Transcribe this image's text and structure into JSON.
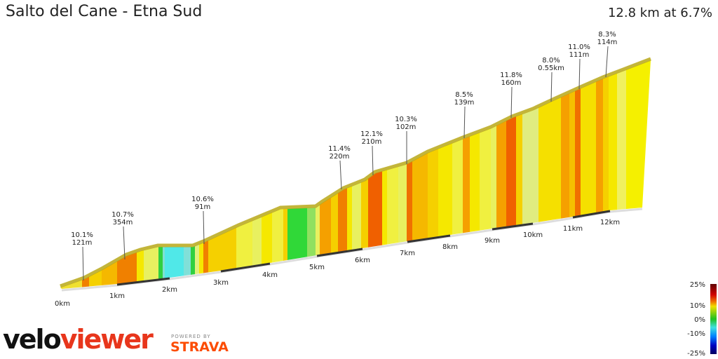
{
  "header": {
    "title": "Salto del Cane - Etna Sud",
    "summary": "12.8 km at 6.7%"
  },
  "profile": {
    "segment_colors": [
      "#f0e030",
      "#f08000",
      "#f5d000",
      "#f5b800",
      "#f08000",
      "#f5e800",
      "#e8f060",
      "#30d040",
      "#80e0d0",
      "#50e8e8",
      "#80e0d8",
      "#30d040",
      "#e0f080",
      "#f5e800",
      "#f08000",
      "#f5d000",
      "#f0f040",
      "#e8f060",
      "#f5e800",
      "#f0f040",
      "#f5d000",
      "#30d838",
      "#90e060",
      "#e8f060",
      "#f5a000",
      "#f5d000",
      "#f08000",
      "#f5e800",
      "#e8f060",
      "#f5d000",
      "#f06000",
      "#f5e800",
      "#f0f040",
      "#e8f060",
      "#f07000",
      "#f5b800",
      "#f5d000",
      "#f5e800",
      "#f0f040",
      "#f5a000",
      "#f5e800",
      "#f0f040",
      "#e8f060",
      "#f5a000",
      "#f06000",
      "#f5d000",
      "#e0ec80",
      "#f5e000",
      "#f5a000",
      "#f5c000",
      "#f07000",
      "#f5e000",
      "#f5a000",
      "#f5d000",
      "#f5e800",
      "#f0f060",
      "#f5f000"
    ],
    "annotations": [
      {
        "grade": "10.1%",
        "length": "121m"
      },
      {
        "grade": "10.7%",
        "length": "354m"
      },
      {
        "grade": "10.6%",
        "length": "91m"
      },
      {
        "grade": "11.4%",
        "length": "220m"
      },
      {
        "grade": "12.1%",
        "length": "210m"
      },
      {
        "grade": "10.3%",
        "length": "102m"
      },
      {
        "grade": "8.5%",
        "length": "139m"
      },
      {
        "grade": "11.8%",
        "length": "160m"
      },
      {
        "grade": "8.0%",
        "length": "0.55km"
      },
      {
        "grade": "11.0%",
        "length": "111m"
      },
      {
        "grade": "8.3%",
        "length": "114m"
      }
    ],
    "distance_ticks": [
      "0km",
      "1km",
      "2km",
      "3km",
      "4km",
      "5km",
      "6km",
      "7km",
      "8km",
      "9km",
      "10km",
      "11km",
      "12km"
    ]
  },
  "legend": {
    "labels": [
      "25%",
      "10%",
      "0%",
      "-10%",
      "-25%"
    ],
    "colors": [
      "#600000",
      "#d00000",
      "#f07000",
      "#f0e000",
      "#20c020",
      "#40e0e0",
      "#0080ff",
      "#0000c0",
      "#000060"
    ]
  },
  "branding": {
    "logo_part1": "velo",
    "logo_part2": "viewer",
    "powered_by": "POWERED BY",
    "strava": "STRAVA"
  }
}
